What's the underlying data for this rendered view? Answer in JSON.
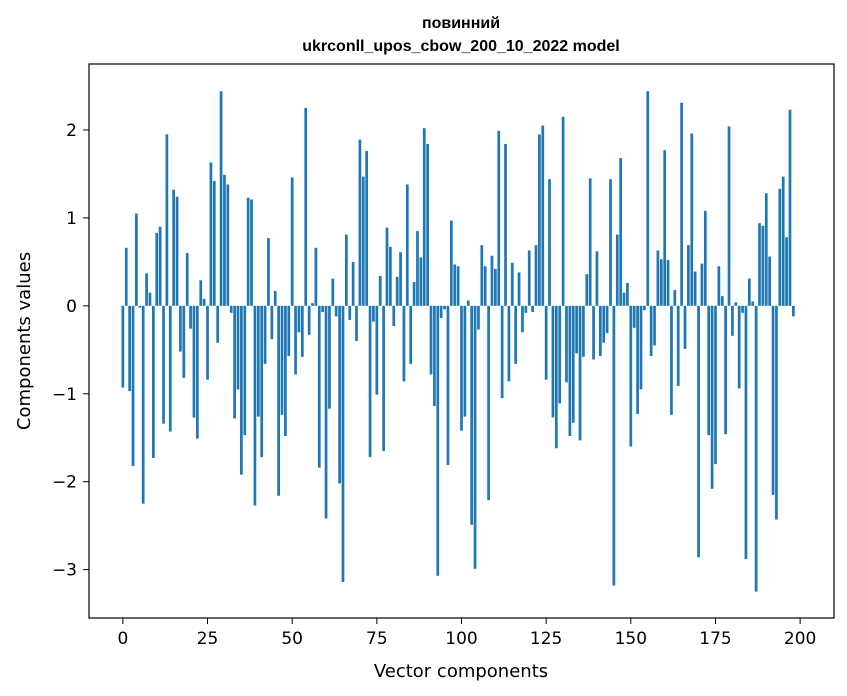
{
  "chart_data": {
    "type": "bar",
    "title_line1": "повинний",
    "title_line2": "ukrconll_upos_cbow_200_10_2022 model",
    "xlabel": "Vector components",
    "ylabel": "Components values",
    "xlim": [
      -10,
      210
    ],
    "ylim": [
      -3.55,
      2.75
    ],
    "xticks": [
      0,
      25,
      50,
      75,
      100,
      125,
      150,
      175,
      200
    ],
    "yticks": [
      -3,
      -2,
      -1,
      0,
      1,
      2
    ],
    "ytick_labels": [
      "−3",
      "−2",
      "−1",
      "0",
      "1",
      "2"
    ],
    "bar_color": "#1f77b4",
    "grid": false,
    "values": [
      -0.93,
      0.66,
      -0.97,
      -1.82,
      1.05,
      -0.02,
      -2.25,
      0.37,
      0.15,
      -1.73,
      0.83,
      0.9,
      -1.34,
      1.95,
      -1.43,
      1.32,
      1.24,
      -0.52,
      -0.82,
      0.6,
      -0.26,
      -1.27,
      -1.51,
      0.29,
      0.08,
      -0.84,
      1.63,
      1.42,
      -0.42,
      2.44,
      1.49,
      1.38,
      -0.08,
      -1.28,
      -0.95,
      -1.92,
      -1.47,
      1.23,
      1.21,
      -2.27,
      -1.26,
      -1.72,
      -0.66,
      0.77,
      -0.38,
      0.17,
      -2.16,
      -1.24,
      -1.48,
      -0.57,
      1.46,
      -0.78,
      -0.3,
      -0.58,
      2.25,
      -0.33,
      0.03,
      0.66,
      -1.84,
      -0.07,
      -2.42,
      -1.17,
      0.31,
      -0.12,
      -2.02,
      -3.14,
      0.81,
      -0.16,
      0.5,
      -0.4,
      1.89,
      1.47,
      1.76,
      -1.72,
      -0.18,
      -1.01,
      0.34,
      -1.65,
      0.89,
      0.67,
      -0.23,
      0.33,
      0.61,
      -0.86,
      1.38,
      -0.66,
      0.27,
      0.85,
      0.55,
      2.02,
      1.84,
      -0.78,
      -1.14,
      -3.07,
      -0.14,
      -0.04,
      -1.81,
      0.97,
      0.47,
      0.45,
      -1.42,
      -1.26,
      0.06,
      -2.49,
      -2.99,
      -0.27,
      0.69,
      0.45,
      -2.21,
      0.57,
      0.42,
      1.99,
      -1.05,
      1.84,
      -0.86,
      0.49,
      -0.66,
      0.38,
      -0.3,
      -0.08,
      0.63,
      -0.07,
      0.69,
      1.95,
      2.05,
      -0.84,
      1.44,
      -1.27,
      -1.62,
      -1.11,
      2.15,
      -0.87,
      -1.48,
      -1.33,
      -0.54,
      -1.53,
      -0.58,
      0.36,
      1.45,
      -0.61,
      0.62,
      -0.57,
      -0.42,
      -0.31,
      1.44,
      -3.18,
      0.81,
      1.68,
      0.15,
      0.26,
      -1.6,
      -0.25,
      -1.23,
      -0.95,
      -0.05,
      2.44,
      -0.57,
      -0.45,
      0.63,
      0.53,
      1.77,
      0.52,
      -1.24,
      0.18,
      -0.91,
      2.31,
      -0.49,
      0.69,
      1.96,
      0.39,
      -2.86,
      0.48,
      1.08,
      -1.47,
      -2.08,
      -1.8,
      0.45,
      0.11,
      -1.46,
      2.04,
      -0.34,
      0.04,
      -0.94,
      -0.08,
      -2.88,
      0.31,
      0.05,
      -3.25,
      0.94,
      0.91,
      1.28,
      0.56,
      -2.15,
      -2.43,
      1.33,
      1.47,
      0.78,
      2.23,
      -0.12
    ]
  }
}
